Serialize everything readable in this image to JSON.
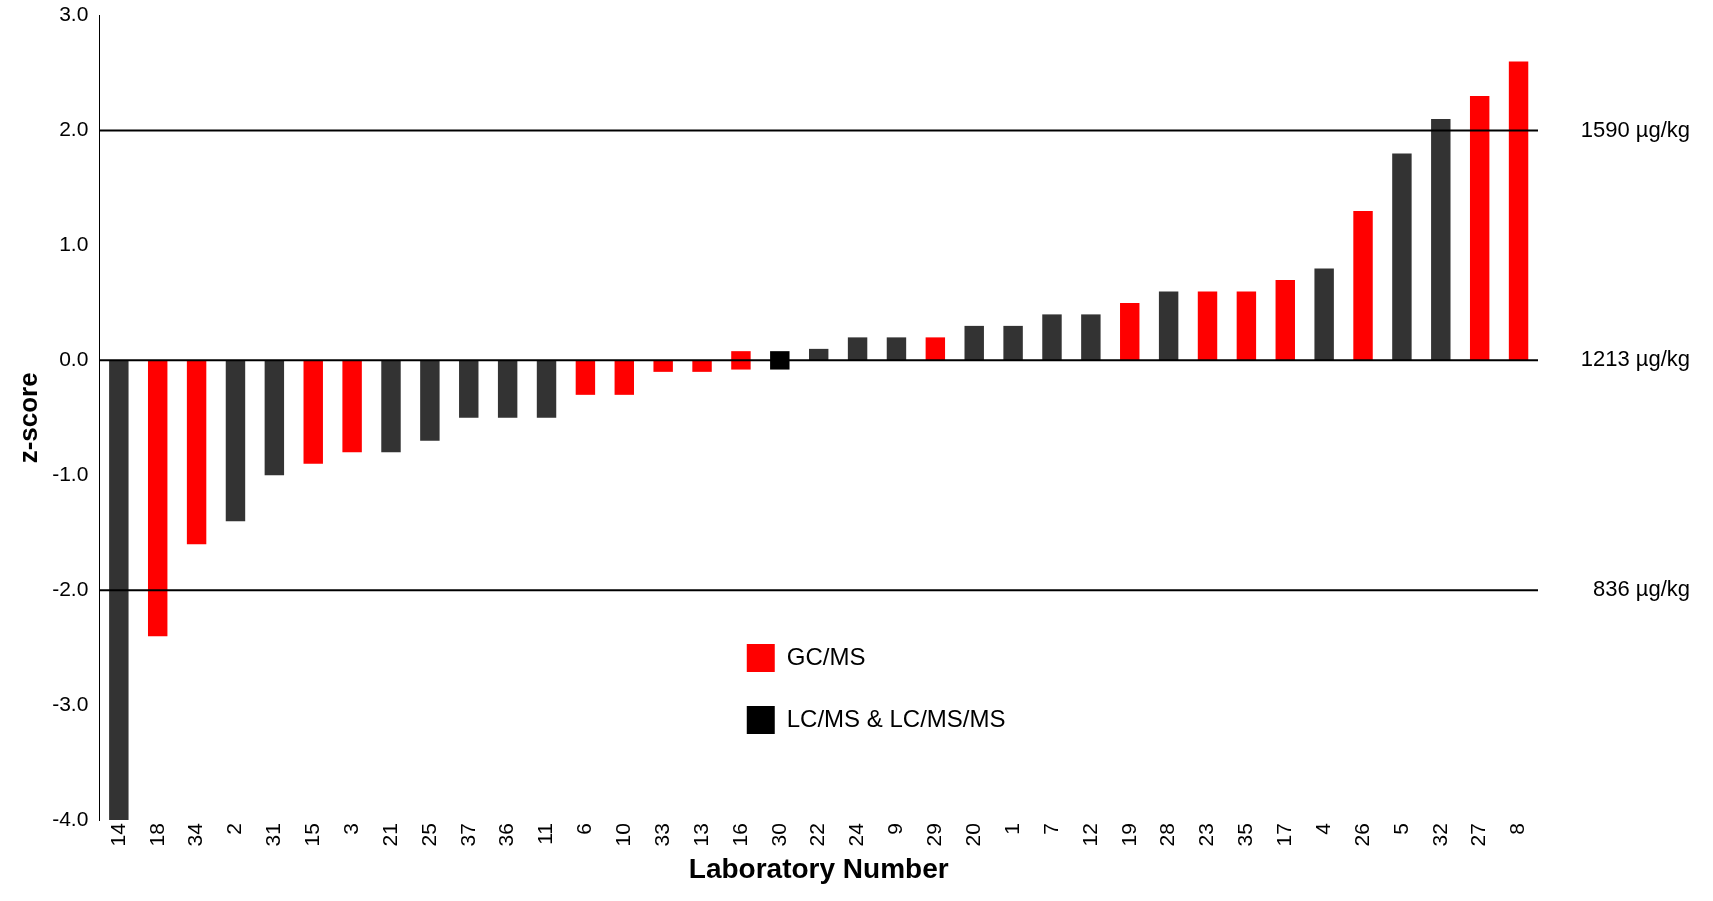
{
  "chart_data": {
    "type": "bar",
    "xlabel": "Laboratory Number",
    "ylabel": "z-score",
    "categories": [
      "14",
      "18",
      "34",
      "2",
      "31",
      "15",
      "3",
      "21",
      "25",
      "37",
      "36",
      "11",
      "6",
      "10",
      "33",
      "13",
      "16",
      "30",
      "22",
      "24",
      "9",
      "29",
      "20",
      "1",
      "7",
      "12",
      "19",
      "28",
      "23",
      "35",
      "17",
      "4",
      "26",
      "5",
      "32",
      "27",
      "8"
    ],
    "series": [
      {
        "name": "GC/MS",
        "color": "#ff0000",
        "base": [
          null,
          0,
          0,
          null,
          null,
          0,
          0,
          null,
          null,
          null,
          null,
          null,
          0,
          0,
          0,
          0,
          -0.08,
          null,
          null,
          null,
          null,
          0,
          null,
          null,
          null,
          null,
          0,
          null,
          0,
          0,
          0,
          null,
          0,
          null,
          null,
          0,
          0
        ],
        "values": [
          null,
          -2.4,
          -1.6,
          null,
          null,
          -0.9,
          -0.8,
          null,
          null,
          null,
          null,
          null,
          -0.3,
          -0.3,
          -0.1,
          -0.1,
          0.16,
          null,
          null,
          null,
          null,
          0.2,
          null,
          null,
          null,
          null,
          0.5,
          null,
          0.6,
          0.6,
          0.7,
          null,
          1.3,
          null,
          null,
          2.3,
          2.6
        ]
      },
      {
        "name": "LC/MS & LC/MS/MS",
        "color": "#000000",
        "base": [
          0,
          null,
          null,
          0,
          0,
          null,
          null,
          0,
          0,
          0,
          0,
          0,
          null,
          null,
          null,
          null,
          null,
          -0.08,
          0,
          0,
          0,
          null,
          0,
          0,
          0,
          0,
          null,
          0,
          null,
          null,
          null,
          0,
          null,
          0,
          0,
          null,
          null
        ],
        "colors": [
          "#333333",
          "#333333",
          "#333333",
          "#333333",
          "#333333",
          "#333333",
          "#333333",
          "#333333",
          "#333333",
          "#333333",
          "#333333",
          "#333333",
          "#333333",
          "#333333",
          "#333333",
          "#333333",
          "#333333",
          "#000000",
          "#333333",
          "#333333",
          "#333333",
          "#333333",
          "#333333",
          "#333333",
          "#333333",
          "#333333",
          "#333333",
          "#333333",
          "#333333",
          "#333333",
          "#333333",
          "#333333",
          "#333333",
          "#333333",
          "#333333",
          "#333333",
          "#333333"
        ],
        "values": [
          -4.0,
          null,
          null,
          -1.4,
          -1.0,
          null,
          null,
          -0.8,
          -0.7,
          -0.5,
          -0.5,
          -0.5,
          null,
          null,
          null,
          null,
          null,
          0.16,
          0.1,
          0.2,
          0.2,
          null,
          0.3,
          0.3,
          0.4,
          0.4,
          null,
          0.6,
          null,
          null,
          null,
          0.8,
          null,
          1.8,
          2.1,
          null,
          null
        ]
      }
    ],
    "ylim": [
      -4,
      3
    ],
    "yticks": [
      {
        "value": -4,
        "label": "-4.0"
      },
      {
        "value": -3,
        "label": "-3.0"
      },
      {
        "value": -2,
        "label": "-2.0"
      },
      {
        "value": -1,
        "label": "-1.0"
      },
      {
        "value": 0,
        "label": "0.0"
      },
      {
        "value": 1,
        "label": "1.0"
      },
      {
        "value": 2,
        "label": "2.0"
      },
      {
        "value": 3,
        "label": "3.0"
      }
    ],
    "ref_lines": [
      {
        "axis": "y",
        "value": 2,
        "label": "1590 µg/kg",
        "color": "#000000"
      },
      {
        "axis": "y",
        "value": 0,
        "label": "1213 µg/kg",
        "color": "#000000"
      },
      {
        "axis": "y",
        "value": -2,
        "label": "836 µg/kg",
        "color": "#000000"
      }
    ],
    "grid": false,
    "legend": "bottom"
  }
}
